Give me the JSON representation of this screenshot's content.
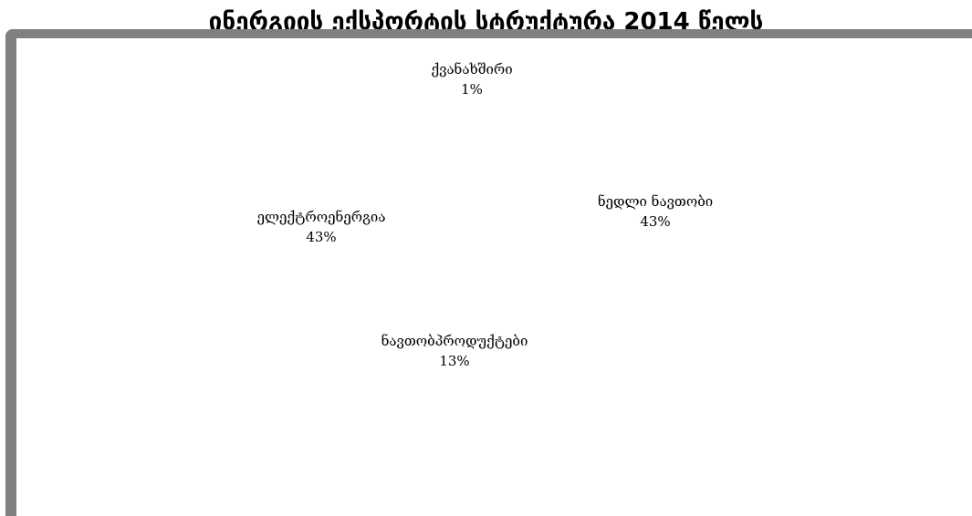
{
  "title": "ინერგიის ექსპორტის სტრუქტურა 2014 წელს",
  "chart_data": {
    "type": "pie",
    "title": "ინერგიის ექსპორტის სტრუქტურა 2014 წელს",
    "categories": [
      "ქვანახშირი",
      "ნედლი ნავთობი",
      "ნავთობპროდუქტები",
      "ელექტროენერგია"
    ],
    "values": [
      1,
      43,
      13,
      43
    ],
    "value_labels": [
      "1%",
      "43%",
      "13%",
      "43%"
    ],
    "colors": [
      "#ffffff",
      "#ffffff",
      "#ffffff",
      "#ffffff"
    ],
    "legend": "none",
    "data_labels": "outside-slices"
  }
}
